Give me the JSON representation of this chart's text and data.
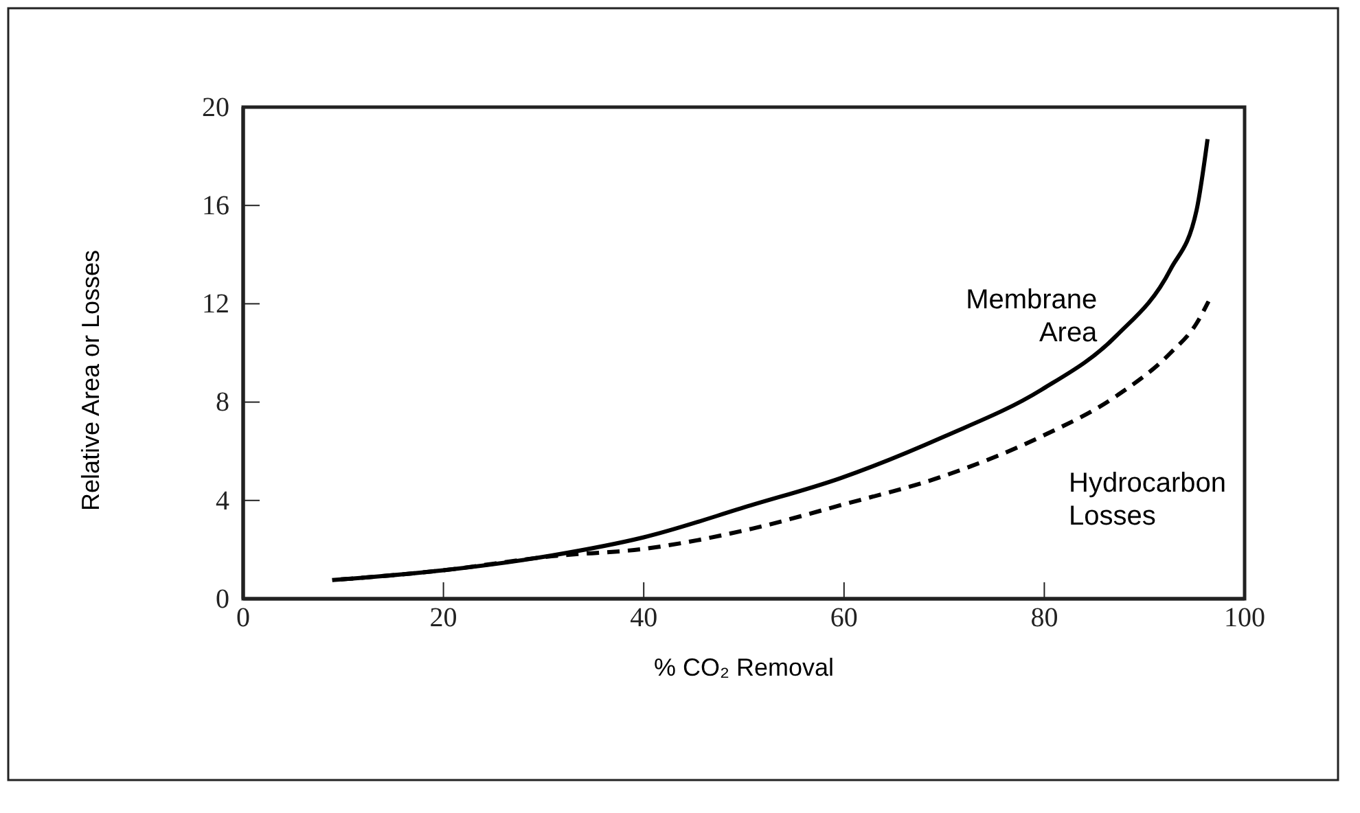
{
  "chart_data": {
    "type": "line",
    "xlabel": "% CO₂ Removal",
    "ylabel": "Relative  Area  or Losses",
    "xlim": [
      0,
      100
    ],
    "ylim": [
      0,
      20
    ],
    "xticks": [
      0,
      20,
      40,
      60,
      80,
      100
    ],
    "yticks": [
      0,
      4,
      8,
      12,
      16,
      20
    ],
    "grid": false,
    "series": [
      {
        "name": "Membrane Area",
        "color": "#000000",
        "line_style": "solid",
        "x": [
          8.9,
          20,
          30.8,
          40,
          50.7,
          59.6,
          70,
          79.7,
          87.2,
          92.6,
          95.2,
          96.3
        ],
        "values": [
          0.76,
          1.16,
          1.76,
          2.5,
          3.8,
          4.9,
          6.6,
          8.5,
          10.7,
          13.4,
          15.8,
          18.7
        ]
      },
      {
        "name": "Hydrocarbon Losses",
        "color": "#000000",
        "line_style": "dashed",
        "x": [
          8.9,
          20,
          30.8,
          40,
          50.7,
          59.6,
          70,
          79.7,
          87.2,
          92.6,
          95.2,
          96.4
        ],
        "values": [
          0.76,
          1.16,
          1.73,
          2.03,
          2.84,
          3.8,
          5.0,
          6.6,
          8.25,
          10.0,
          11.2,
          12.1
        ]
      }
    ]
  }
}
